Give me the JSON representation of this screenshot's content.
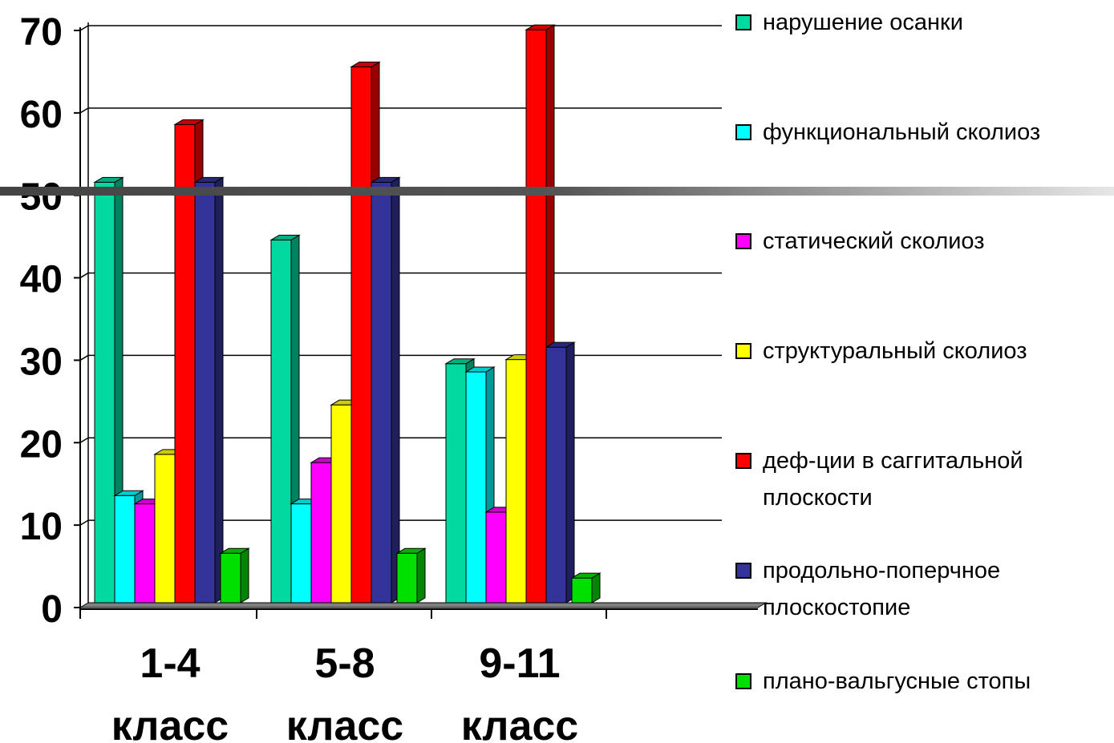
{
  "chart_data": {
    "type": "bar",
    "categories": [
      "1-4 класс",
      "5-8 класс",
      "9-11 класс"
    ],
    "category_lines": [
      [
        "1-4",
        "класс"
      ],
      [
        "5-8",
        "класс"
      ],
      [
        "9-11",
        "класс"
      ]
    ],
    "ylim": [
      0,
      70
    ],
    "y_ticks": [
      "0",
      "10",
      "20",
      "30",
      "40",
      "50",
      "60",
      "70"
    ],
    "grid": true,
    "legend_position": "right",
    "series": [
      {
        "name": "нарушение осанки",
        "color": "#00D9A0",
        "values": [
          51,
          44,
          29
        ]
      },
      {
        "name": "функциональный сколиоз",
        "color": "#00FFFF",
        "values": [
          13,
          12,
          28
        ]
      },
      {
        "name": "статический сколиоз",
        "color": "#FF00FF",
        "values": [
          12,
          17,
          11
        ]
      },
      {
        "name": "структуральный сколиоз",
        "color": "#FFFF00",
        "values": [
          18,
          24,
          29.5
        ]
      },
      {
        "name": "деф-ции в саггитальной плоскости",
        "name_lines": [
          "деф-ции в саггитальной",
          "плоскости"
        ],
        "color": "#FF0000",
        "values": [
          58,
          65,
          69.5
        ]
      },
      {
        "name": "продольно-поперчное плоскостопие",
        "name_lines": [
          "продольно-поперчное",
          "плоскостопие"
        ],
        "color": "#333399",
        "values": [
          51,
          51,
          31
        ]
      },
      {
        "name": "плано-вальгусные стопы",
        "color": "#00E000",
        "values": [
          6,
          6,
          3
        ]
      }
    ]
  }
}
